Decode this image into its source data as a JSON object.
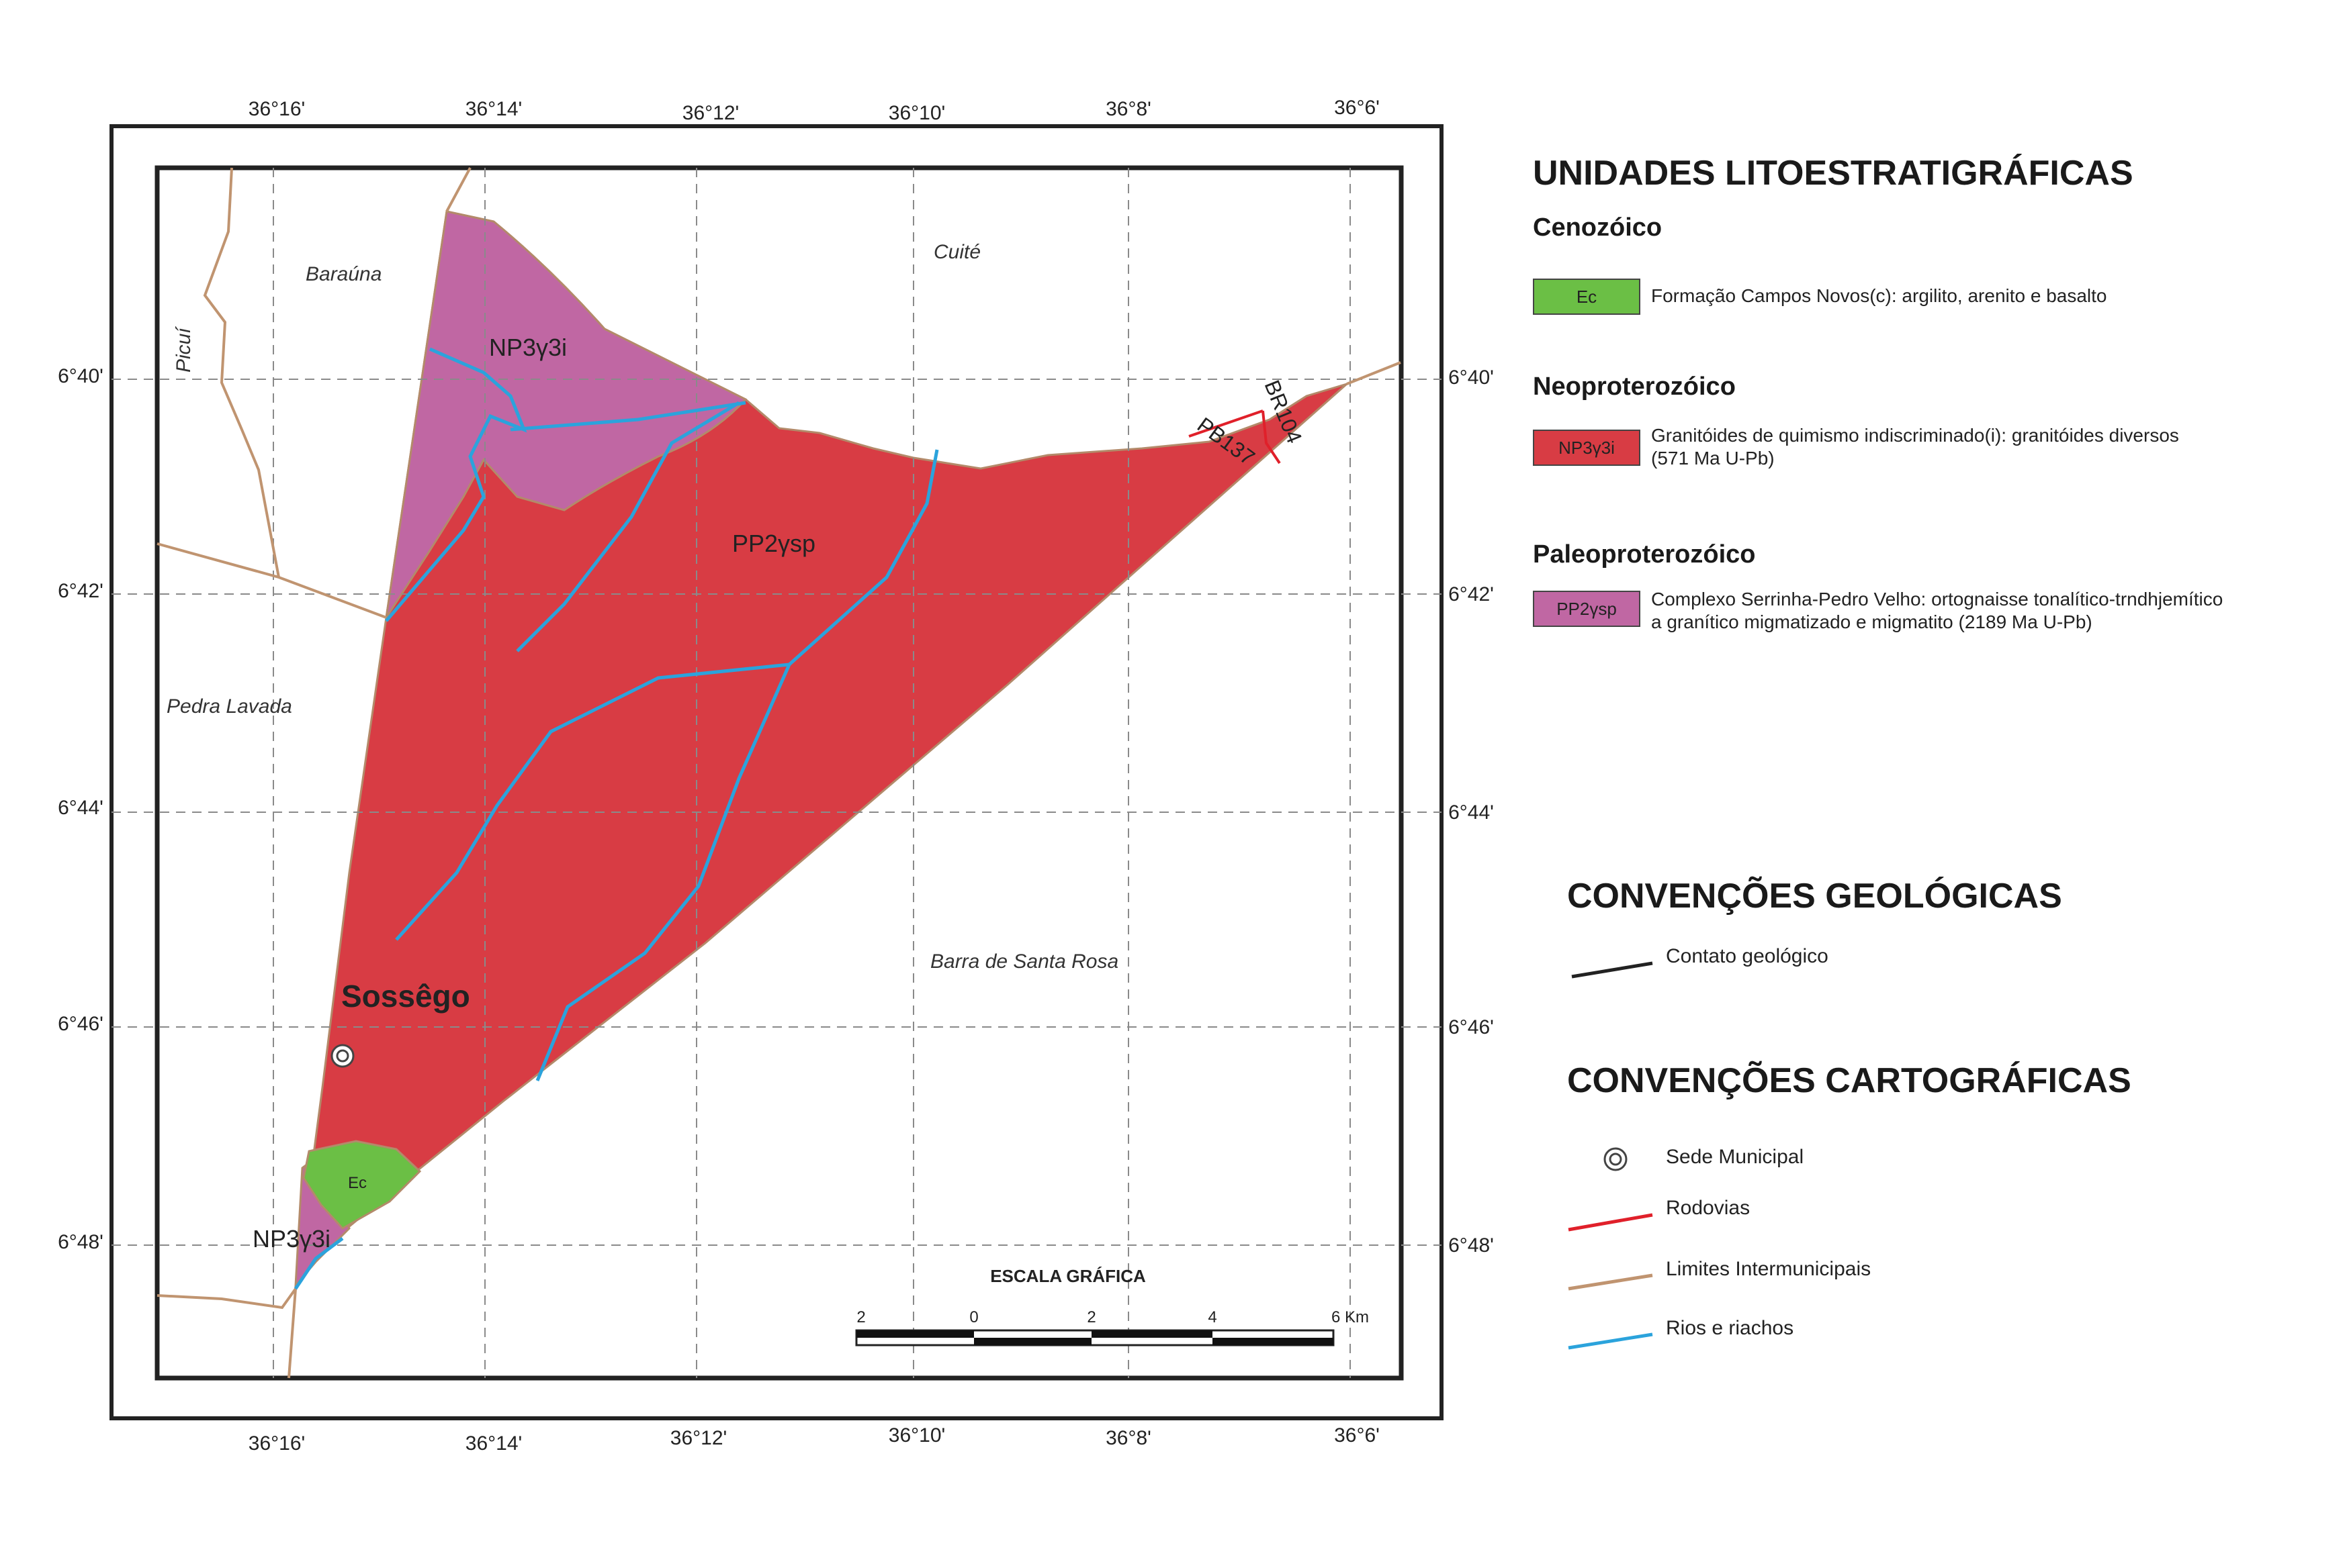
{
  "map": {
    "top_lon_labels": [
      "36°16'",
      "36°14'",
      "36°12'",
      "36°10'",
      "36°8'",
      "36°6'"
    ],
    "bottom_lon_labels": [
      "36°16'",
      "36°14'",
      "36°12'",
      "36°10'",
      "36°8'",
      "36°6'"
    ],
    "left_lat_labels": [
      "6°40'",
      "6°42'",
      "6°44'",
      "6°46'",
      "6°48'"
    ],
    "right_lat_labels": [
      "6°40'",
      "6°42'",
      "6°44'",
      "6°46'",
      "6°48'"
    ],
    "place_names": {
      "barauna": "Baraúna",
      "cuite": "Cuité",
      "picui": "Picuí",
      "pedra_lavada": "Pedra Lavada",
      "barra_de_santa_rosa": "Barra de Santa Rosa"
    },
    "municipality": "Sossêgo",
    "unit_labels": {
      "np3_top": "NP3γ3i",
      "np3_bottom": "NP3γ3i",
      "pp2": "PP2γsp",
      "ec": "Ec"
    },
    "road_labels": {
      "br": "BR104",
      "pb": "PB137"
    },
    "scale": {
      "title": "ESCALA GRÁFICA",
      "ticks": [
        "2",
        "0",
        "2",
        "4",
        "6 Km"
      ]
    }
  },
  "legend": {
    "units_title": "UNIDADES LITOESTRATIGRÁFICAS",
    "eras": [
      {
        "name": "Cenozóico",
        "code": "Ec",
        "color": "#6bbf45",
        "description": [
          "Formação Campos Novos(c): argilito, arenito e basalto"
        ]
      },
      {
        "name": "Neoproterozóico",
        "code": "NP3γ3i",
        "color": "#d83c44",
        "description": [
          "Granitóides de quimismo indiscriminado(i): granitóides diversos",
          "(571 Ma U-Pb)"
        ]
      },
      {
        "name": "Paleoproterozóico",
        "code": "PP2γsp",
        "color": "#c067a3",
        "description": [
          "Complexo Serrinha-Pedro Velho: ortognaisse tonalítico-trndhjemítico",
          "a granítico migmatizado e migmatito (2189 Ma U-Pb)"
        ]
      }
    ],
    "geo_title": "CONVENÇÕES GEOLÓGICAS",
    "geo_items": [
      {
        "label": "Contato geológico",
        "color": "#222222"
      }
    ],
    "carto_title": "CONVENÇÕES CARTOGRÁFICAS",
    "carto_items": [
      {
        "label": "Sede Municipal",
        "symbol": "double-circle-icon"
      },
      {
        "label": "Rodovias",
        "color": "#e0202a"
      },
      {
        "label": "Limites Intermunicipais",
        "color": "#c09470"
      },
      {
        "label": "Rios e riachos",
        "color": "#2ba3dc"
      }
    ]
  }
}
